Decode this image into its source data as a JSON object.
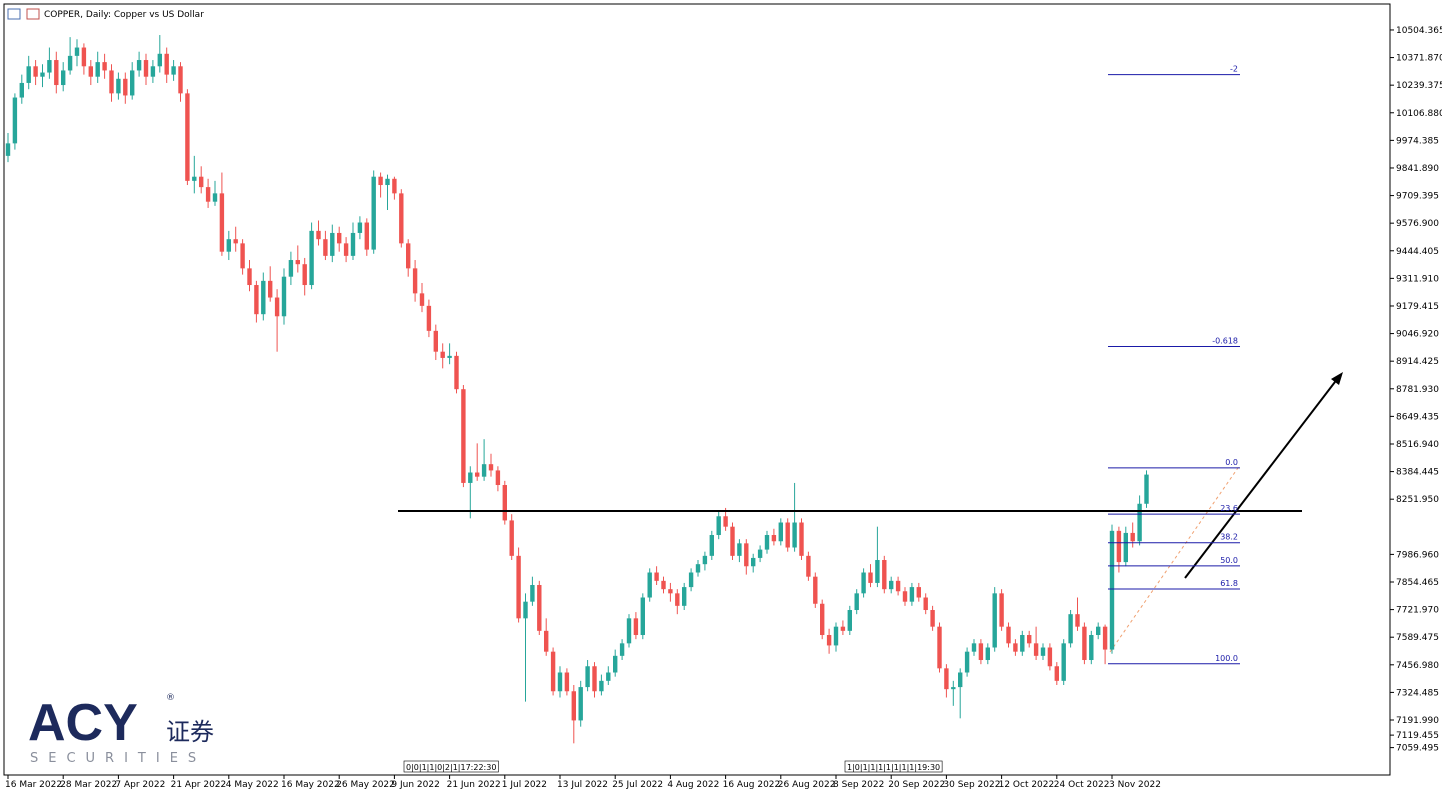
{
  "chart_data": {
    "type": "candlestick",
    "title": "COPPER, Daily:  Copper vs US Dollar",
    "up_color": "#26a69a",
    "down_color": "#ef5350",
    "categories": [
      "16 Mar 2022",
      null,
      null,
      null,
      null,
      null,
      null,
      null,
      "28 Mar 2022",
      null,
      null,
      null,
      null,
      null,
      null,
      null,
      "7 Apr 2022",
      null,
      null,
      null,
      null,
      null,
      null,
      null,
      "21 Apr 2022",
      null,
      null,
      null,
      null,
      null,
      null,
      null,
      "4 May 2022",
      null,
      null,
      null,
      null,
      null,
      null,
      null,
      "16 May 2022",
      null,
      null,
      null,
      null,
      null,
      null,
      null,
      "26 May 2022",
      null,
      null,
      null,
      null,
      null,
      null,
      null,
      "9 Jun 2022",
      null,
      null,
      null,
      null,
      null,
      null,
      null,
      "21 Jun 2022",
      null,
      null,
      null,
      null,
      null,
      null,
      null,
      "1 Jul 2022",
      null,
      null,
      null,
      null,
      null,
      null,
      null,
      "13 Jul 2022",
      null,
      null,
      null,
      null,
      null,
      null,
      null,
      "25 Jul 2022",
      null,
      null,
      null,
      null,
      null,
      null,
      null,
      "4 Aug 2022",
      null,
      null,
      null,
      null,
      null,
      null,
      null,
      "16 Aug 2022",
      null,
      null,
      null,
      null,
      null,
      null,
      null,
      "26 Aug 2022",
      null,
      null,
      null,
      null,
      null,
      null,
      null,
      "8 Sep 2022",
      null,
      null,
      null,
      null,
      null,
      null,
      null,
      "20 Sep 2022",
      null,
      null,
      null,
      null,
      null,
      null,
      null,
      "30 Sep 2022",
      null,
      null,
      null,
      null,
      null,
      null,
      null,
      "12 Oct 2022",
      null,
      null,
      null,
      null,
      null,
      null,
      null,
      "24 Oct 2022",
      null,
      null,
      null,
      null,
      null,
      null,
      null,
      "3 Nov 2022",
      null,
      null,
      null,
      null,
      null
    ],
    "ohlc": [
      [
        9900,
        10010,
        9870,
        9960
      ],
      [
        9960,
        10200,
        9930,
        10180
      ],
      [
        10180,
        10290,
        10150,
        10250
      ],
      [
        10250,
        10380,
        10220,
        10330
      ],
      [
        10330,
        10360,
        10240,
        10280
      ],
      [
        10280,
        10340,
        10230,
        10300
      ],
      [
        10300,
        10420,
        10270,
        10360
      ],
      [
        10360,
        10400,
        10200,
        10240
      ],
      [
        10240,
        10350,
        10210,
        10310
      ],
      [
        10310,
        10470,
        10290,
        10380
      ],
      [
        10380,
        10460,
        10330,
        10420
      ],
      [
        10420,
        10440,
        10290,
        10330
      ],
      [
        10330,
        10360,
        10240,
        10280
      ],
      [
        10280,
        10400,
        10250,
        10350
      ],
      [
        10350,
        10390,
        10270,
        10310
      ],
      [
        10310,
        10340,
        10160,
        10200
      ],
      [
        10200,
        10300,
        10170,
        10270
      ],
      [
        10270,
        10300,
        10150,
        10190
      ],
      [
        10190,
        10350,
        10170,
        10310
      ],
      [
        10310,
        10400,
        10280,
        10360
      ],
      [
        10360,
        10390,
        10240,
        10280
      ],
      [
        10280,
        10360,
        10250,
        10330
      ],
      [
        10330,
        10480,
        10300,
        10390
      ],
      [
        10390,
        10420,
        10250,
        10290
      ],
      [
        10290,
        10360,
        10260,
        10330
      ],
      [
        10330,
        10350,
        10160,
        10200
      ],
      [
        10200,
        10220,
        9760,
        9780
      ],
      [
        9780,
        9900,
        9720,
        9800
      ],
      [
        9800,
        9850,
        9720,
        9750
      ],
      [
        9750,
        9790,
        9650,
        9680
      ],
      [
        9680,
        9780,
        9660,
        9720
      ],
      [
        9720,
        9820,
        9420,
        9440
      ],
      [
        9440,
        9540,
        9400,
        9500
      ],
      [
        9500,
        9560,
        9440,
        9480
      ],
      [
        9480,
        9500,
        9330,
        9360
      ],
      [
        9360,
        9400,
        9250,
        9280
      ],
      [
        9280,
        9300,
        9100,
        9140
      ],
      [
        9140,
        9340,
        9110,
        9300
      ],
      [
        9300,
        9370,
        9200,
        9220
      ],
      [
        9220,
        9260,
        8960,
        9130
      ],
      [
        9130,
        9360,
        9090,
        9320
      ],
      [
        9320,
        9440,
        9280,
        9400
      ],
      [
        9400,
        9470,
        9340,
        9380
      ],
      [
        9380,
        9410,
        9230,
        9280
      ],
      [
        9280,
        9580,
        9260,
        9540
      ],
      [
        9540,
        9590,
        9470,
        9500
      ],
      [
        9500,
        9540,
        9400,
        9420
      ],
      [
        9420,
        9570,
        9390,
        9530
      ],
      [
        9530,
        9560,
        9440,
        9480
      ],
      [
        9480,
        9510,
        9390,
        9420
      ],
      [
        9420,
        9580,
        9400,
        9530
      ],
      [
        9530,
        9610,
        9500,
        9580
      ],
      [
        9580,
        9600,
        9420,
        9450
      ],
      [
        9450,
        9830,
        9430,
        9800
      ],
      [
        9800,
        9820,
        9700,
        9760
      ],
      [
        9760,
        9810,
        9640,
        9790
      ],
      [
        9790,
        9800,
        9690,
        9720
      ],
      [
        9720,
        9740,
        9460,
        9480
      ],
      [
        9480,
        9500,
        9320,
        9360
      ],
      [
        9360,
        9400,
        9200,
        9240
      ],
      [
        9240,
        9290,
        9150,
        9180
      ],
      [
        9180,
        9210,
        9030,
        9060
      ],
      [
        9060,
        9090,
        8920,
        8960
      ],
      [
        8960,
        9000,
        8880,
        8930
      ],
      [
        8930,
        9000,
        8900,
        8940
      ],
      [
        8940,
        8960,
        8760,
        8780
      ],
      [
        8780,
        8800,
        8310,
        8330
      ],
      [
        8330,
        8410,
        8160,
        8380
      ],
      [
        8380,
        8520,
        8340,
        8360
      ],
      [
        8360,
        8540,
        8340,
        8420
      ],
      [
        8420,
        8470,
        8360,
        8390
      ],
      [
        8390,
        8410,
        8290,
        8320
      ],
      [
        8320,
        8340,
        8130,
        8150
      ],
      [
        8150,
        8180,
        7960,
        7980
      ],
      [
        7980,
        8020,
        7660,
        7680
      ],
      [
        7680,
        7800,
        7280,
        7760
      ],
      [
        7760,
        7880,
        7740,
        7840
      ],
      [
        7840,
        7860,
        7600,
        7620
      ],
      [
        7620,
        7680,
        7500,
        7520
      ],
      [
        7520,
        7540,
        7310,
        7330
      ],
      [
        7330,
        7450,
        7300,
        7420
      ],
      [
        7420,
        7440,
        7310,
        7330
      ],
      [
        7330,
        7360,
        7080,
        7190
      ],
      [
        7190,
        7380,
        7160,
        7350
      ],
      [
        7350,
        7480,
        7330,
        7450
      ],
      [
        7450,
        7470,
        7300,
        7330
      ],
      [
        7330,
        7410,
        7310,
        7380
      ],
      [
        7380,
        7450,
        7360,
        7420
      ],
      [
        7420,
        7530,
        7400,
        7500
      ],
      [
        7500,
        7580,
        7480,
        7560
      ],
      [
        7560,
        7700,
        7540,
        7680
      ],
      [
        7680,
        7710,
        7580,
        7600
      ],
      [
        7600,
        7800,
        7580,
        7780
      ],
      [
        7780,
        7920,
        7760,
        7900
      ],
      [
        7900,
        7930,
        7840,
        7860
      ],
      [
        7860,
        7880,
        7800,
        7820
      ],
      [
        7820,
        7850,
        7760,
        7800
      ],
      [
        7800,
        7820,
        7700,
        7740
      ],
      [
        7740,
        7850,
        7720,
        7830
      ],
      [
        7830,
        7920,
        7810,
        7900
      ],
      [
        7900,
        7960,
        7880,
        7940
      ],
      [
        7940,
        8000,
        7910,
        7980
      ],
      [
        7980,
        8100,
        7960,
        8080
      ],
      [
        8080,
        8200,
        8060,
        8170
      ],
      [
        8170,
        8210,
        8100,
        8120
      ],
      [
        8120,
        8140,
        7960,
        7980
      ],
      [
        7980,
        8060,
        7950,
        8040
      ],
      [
        8040,
        8060,
        7890,
        7930
      ],
      [
        7930,
        7990,
        7900,
        7970
      ],
      [
        7970,
        8030,
        7950,
        8010
      ],
      [
        8010,
        8100,
        7990,
        8080
      ],
      [
        8080,
        8110,
        8030,
        8050
      ],
      [
        8050,
        8160,
        8030,
        8140
      ],
      [
        8140,
        8160,
        8000,
        8020
      ],
      [
        8020,
        8330,
        8000,
        8140
      ],
      [
        8140,
        8160,
        7960,
        7980
      ],
      [
        7980,
        8000,
        7860,
        7880
      ],
      [
        7880,
        7900,
        7730,
        7750
      ],
      [
        7750,
        7770,
        7580,
        7600
      ],
      [
        7600,
        7630,
        7510,
        7550
      ],
      [
        7550,
        7660,
        7520,
        7640
      ],
      [
        7640,
        7670,
        7600,
        7620
      ],
      [
        7620,
        7740,
        7600,
        7720
      ],
      [
        7720,
        7820,
        7700,
        7800
      ],
      [
        7800,
        7920,
        7780,
        7900
      ],
      [
        7900,
        7940,
        7830,
        7850
      ],
      [
        7850,
        8120,
        7830,
        7960
      ],
      [
        7960,
        7980,
        7800,
        7820
      ],
      [
        7820,
        7880,
        7800,
        7860
      ],
      [
        7860,
        7880,
        7790,
        7810
      ],
      [
        7810,
        7830,
        7740,
        7760
      ],
      [
        7760,
        7850,
        7740,
        7830
      ],
      [
        7830,
        7850,
        7760,
        7780
      ],
      [
        7780,
        7800,
        7700,
        7720
      ],
      [
        7720,
        7740,
        7620,
        7640
      ],
      [
        7640,
        7660,
        7420,
        7440
      ],
      [
        7440,
        7460,
        7300,
        7340
      ],
      [
        7340,
        7380,
        7260,
        7350
      ],
      [
        7350,
        7440,
        7200,
        7420
      ],
      [
        7420,
        7540,
        7400,
        7520
      ],
      [
        7520,
        7580,
        7500,
        7560
      ],
      [
        7560,
        7580,
        7460,
        7480
      ],
      [
        7480,
        7560,
        7460,
        7540
      ],
      [
        7540,
        7830,
        7520,
        7800
      ],
      [
        7800,
        7820,
        7620,
        7640
      ],
      [
        7640,
        7660,
        7540,
        7560
      ],
      [
        7560,
        7580,
        7500,
        7520
      ],
      [
        7520,
        7620,
        7500,
        7600
      ],
      [
        7600,
        7620,
        7540,
        7560
      ],
      [
        7560,
        7640,
        7480,
        7500
      ],
      [
        7500,
        7560,
        7480,
        7540
      ],
      [
        7540,
        7560,
        7430,
        7450
      ],
      [
        7450,
        7470,
        7360,
        7380
      ],
      [
        7380,
        7580,
        7360,
        7560
      ],
      [
        7560,
        7720,
        7540,
        7700
      ],
      [
        7700,
        7780,
        7620,
        7640
      ],
      [
        7640,
        7660,
        7460,
        7480
      ],
      [
        7480,
        7620,
        7460,
        7600
      ],
      [
        7600,
        7660,
        7580,
        7640
      ],
      [
        7640,
        7650,
        7460,
        7530
      ],
      [
        7530,
        8130,
        7510,
        8100
      ],
      [
        8100,
        8120,
        7900,
        7950
      ],
      [
        7950,
        8120,
        7930,
        8090
      ],
      [
        8090,
        8140,
        8020,
        8050
      ],
      [
        8050,
        8270,
        8030,
        8230
      ],
      [
        8230,
        8390,
        8210,
        8370
      ]
    ],
    "ylim": [
      6928,
      10629
    ],
    "yticks": [
      7059.495,
      {
        "value": 7191.99,
        "label": "7191.990"
      },
      7324.485,
      {
        "value": 7456.98,
        "label": "7456.980"
      },
      7589.475,
      {
        "value": 7721.97,
        "label": "7721.970"
      },
      7854.465,
      {
        "value": 7986.96,
        "label": "7986.960"
      },
      7119.455,
      {
        "value": 8251.95,
        "label": "8251.950"
      },
      8384.445,
      {
        "value": 8516.94,
        "label": "8516.940"
      },
      8649.435,
      {
        "value": 8781.93,
        "label": "8781.930"
      },
      8914.425,
      {
        "value": 9046.92,
        "label": "9046.920"
      },
      9179.415,
      {
        "value": 9311.91,
        "label": "9311.910"
      },
      9444.405,
      {
        "value": 9576.9,
        "label": "9576.900"
      },
      9709.395,
      {
        "value": 9841.89,
        "label": "9841.890"
      },
      9974.385,
      {
        "value": 10106.88,
        "label": "10106.880"
      },
      10239.375,
      {
        "value": 10371.87,
        "label": "10371.870"
      },
      10504.365
    ],
    "support_level": 8195,
    "fibonacci": [
      {
        "name": "-2",
        "price": 10290
      },
      {
        "name": "-0.618",
        "price": 8985
      },
      {
        "name": "0.0",
        "price": 8402
      },
      {
        "name": "23.6",
        "price": 8180
      },
      {
        "name": "38.2",
        "price": 8043
      },
      {
        "name": "50.0",
        "price": 7932
      },
      {
        "name": "61.8",
        "price": 7821
      },
      {
        "name": "100.0",
        "price": 7462
      }
    ],
    "markers": [
      "0|0|1|1|0|2|1|17:22:30",
      "1|0|1|1|1|1|1|1|1|19:30"
    ]
  },
  "logo": {
    "brand": "ACY",
    "mark": "®",
    "suffix": "证券",
    "tagline": "SECURITIES"
  }
}
